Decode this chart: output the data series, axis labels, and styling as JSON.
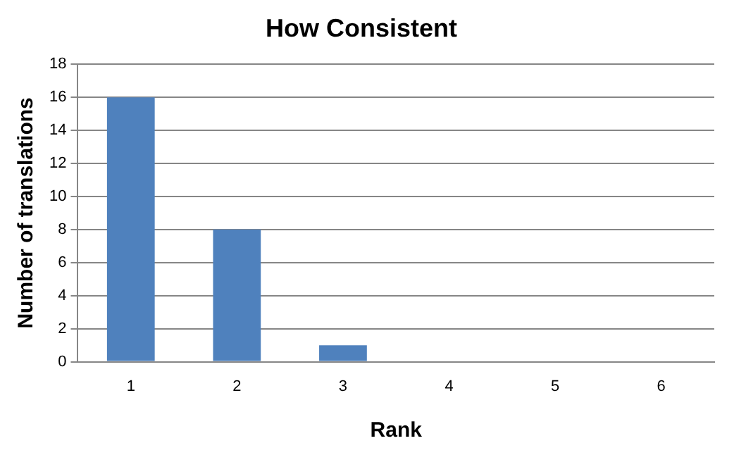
{
  "chart_data": {
    "type": "bar",
    "title": "How Consistent",
    "xlabel": "Rank",
    "ylabel": "Number of translations",
    "categories": [
      "1",
      "2",
      "3",
      "4",
      "5",
      "6"
    ],
    "values": [
      16,
      8,
      1,
      0,
      0,
      0
    ],
    "color": "#4f81bd",
    "ylim": [
      0,
      18
    ],
    "yticks": [
      0,
      2,
      4,
      6,
      8,
      10,
      12,
      14,
      16,
      18
    ],
    "grid": "y"
  }
}
